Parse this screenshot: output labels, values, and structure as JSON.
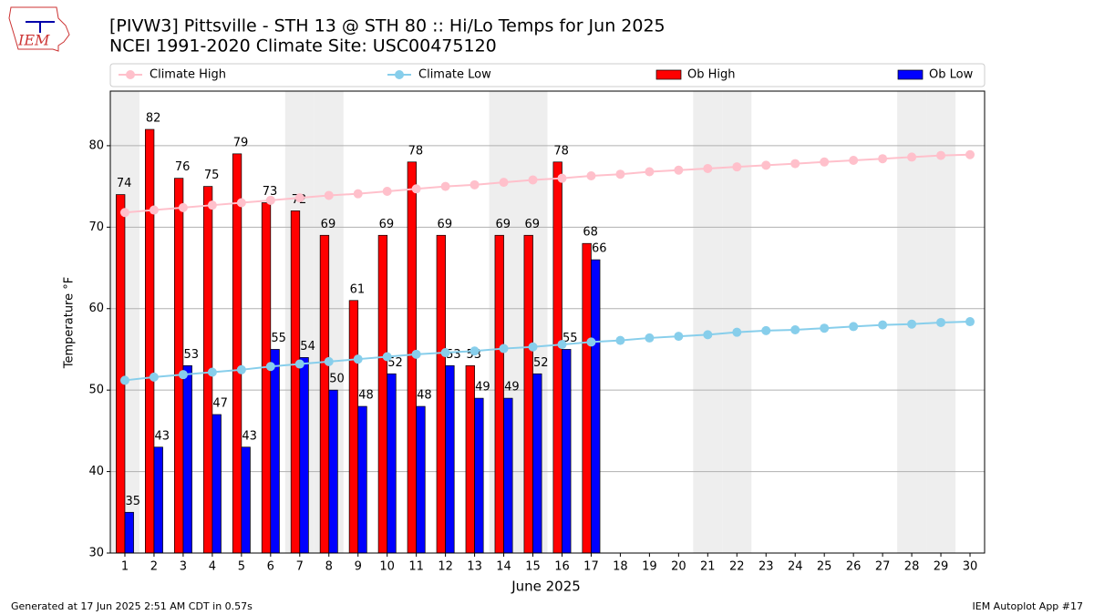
{
  "chart_data": {
    "type": "bar",
    "logo_text": "IEM",
    "title": "[PIVW3] Pittsville - STH 13 @ STH 80 :: Hi/Lo Temps for Jun 2025",
    "subtitle": "NCEI 1991-2020 Climate Site: USC00475120",
    "x_label": "June 2025",
    "y_label": "Temperature °F",
    "footer_left": "Generated at 17 Jun 2025 2:51 AM CDT in 0.57s",
    "footer_right": "IEM Autoplot App #17",
    "x": [
      1,
      2,
      3,
      4,
      5,
      6,
      7,
      8,
      9,
      10,
      11,
      12,
      13,
      14,
      15,
      16,
      17,
      18,
      19,
      20,
      21,
      22,
      23,
      24,
      25,
      26,
      27,
      28,
      29,
      30
    ],
    "xlim": [
      0.5,
      30.5
    ],
    "xticks": [
      1,
      2,
      3,
      4,
      5,
      6,
      7,
      8,
      9,
      10,
      11,
      12,
      13,
      14,
      15,
      16,
      17,
      18,
      19,
      20,
      21,
      22,
      23,
      24,
      25,
      26,
      27,
      28,
      29,
      30
    ],
    "ylim": [
      30,
      86.7
    ],
    "yticks": [
      30,
      40,
      50,
      60,
      70,
      80
    ],
    "grid": true,
    "shaded_days": [
      1,
      7,
      8,
      14,
      15,
      21,
      22,
      28,
      29
    ],
    "series": [
      {
        "name": "Climate High",
        "kind": "line",
        "color": "#ffc0cb",
        "values": [
          71.8,
          72.1,
          72.4,
          72.7,
          73.0,
          73.3,
          73.6,
          73.9,
          74.1,
          74.4,
          74.7,
          75.0,
          75.2,
          75.5,
          75.8,
          76.0,
          76.3,
          76.5,
          76.8,
          77.0,
          77.2,
          77.4,
          77.6,
          77.8,
          78.0,
          78.2,
          78.4,
          78.6,
          78.8,
          78.9
        ]
      },
      {
        "name": "Climate Low",
        "kind": "line",
        "color": "#87ceeb",
        "values": [
          51.2,
          51.6,
          51.9,
          52.2,
          52.5,
          52.9,
          53.2,
          53.5,
          53.8,
          54.1,
          54.4,
          54.6,
          54.8,
          55.1,
          55.3,
          55.6,
          55.9,
          56.1,
          56.4,
          56.6,
          56.8,
          57.1,
          57.3,
          57.4,
          57.6,
          57.8,
          58.0,
          58.1,
          58.3,
          58.4
        ]
      },
      {
        "name": "Ob High",
        "kind": "bar",
        "color": "#ff0000",
        "values": [
          74,
          82,
          76,
          75,
          79,
          73,
          72,
          69,
          61,
          69,
          78,
          69,
          53,
          69,
          69,
          78,
          68,
          null,
          null,
          null,
          null,
          null,
          null,
          null,
          null,
          null,
          null,
          null,
          null,
          null
        ]
      },
      {
        "name": "Ob Low",
        "kind": "bar",
        "color": "#0000ff",
        "values": [
          35,
          43,
          53,
          47,
          43,
          55,
          54,
          50,
          48,
          52,
          48,
          53,
          49,
          49,
          52,
          55,
          66,
          null,
          null,
          null,
          null,
          null,
          null,
          null,
          null,
          null,
          null,
          null,
          null,
          null
        ]
      }
    ]
  }
}
